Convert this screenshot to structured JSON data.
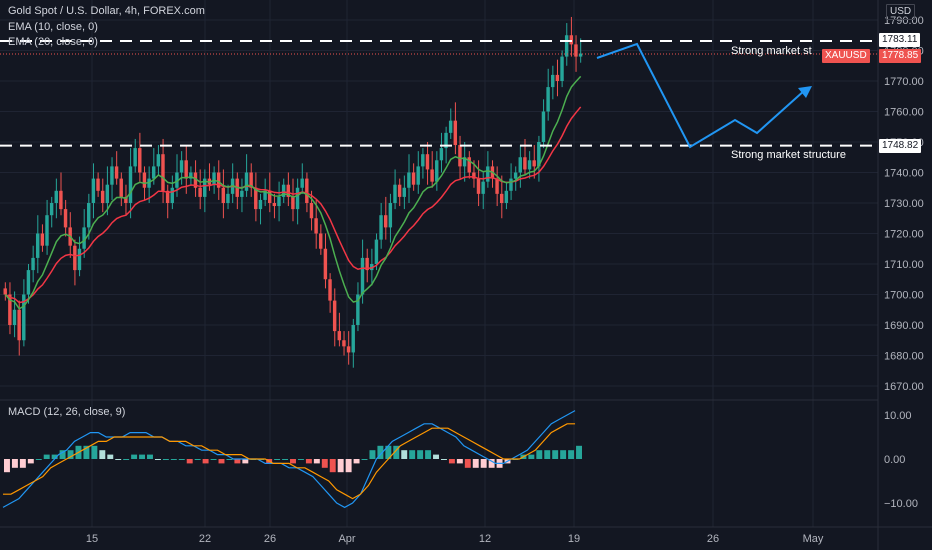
{
  "header": {
    "title": "Gold Spot / U.S. Dollar, 4h, FOREX.com",
    "ema1": "EMA (10, close, 0)",
    "ema2": "EMA (20, close, 0)",
    "currency": "USD"
  },
  "price_axis": {
    "ticks": [
      "1790.00",
      "1780.00",
      "1770.00",
      "1760.00",
      "1750.00",
      "1740.00",
      "1730.00",
      "1720.00",
      "1710.00",
      "1700.00",
      "1690.00",
      "1680.00",
      "1670.00"
    ]
  },
  "macd": {
    "label": "MACD (12, 26, close, 9)",
    "ticks": [
      "10.00",
      "0.00",
      "−10.00"
    ]
  },
  "time_axis": {
    "ticks": [
      "15",
      "22",
      "26",
      "Apr",
      "12",
      "19",
      "26",
      "May"
    ]
  },
  "levels": {
    "resistance": {
      "price": 1783.11,
      "label": "1783.11",
      "text": "Strong market st"
    },
    "support": {
      "price": 1748.82,
      "label": "1748.82",
      "text": "Strong market structure"
    },
    "current": {
      "symbol": "XAUUSD",
      "label": "1778.85",
      "price": 1778.85
    }
  },
  "colors": {
    "background": "#131722",
    "grid": "#1f2433",
    "up": "#26a69a",
    "down": "#ef5350",
    "ema_fast": "#4caf50",
    "ema_slow": "#f23645",
    "projection": "#2196f3",
    "macd_line": "#2196f3",
    "signal_line": "#ff9800"
  },
  "chart_data": {
    "type": "candlestick",
    "ylim": [
      1665,
      1793
    ],
    "candle_closes": [
      1700,
      1690,
      1695,
      1685,
      1700,
      1708,
      1712,
      1720,
      1716,
      1726,
      1730,
      1734,
      1728,
      1722,
      1716,
      1708,
      1715,
      1722,
      1730,
      1738,
      1734,
      1730,
      1736,
      1742,
      1738,
      1732,
      1730,
      1742,
      1748,
      1740,
      1735,
      1738,
      1742,
      1746,
      1734,
      1730,
      1735,
      1740,
      1744,
      1738,
      1740,
      1735,
      1732,
      1738,
      1736,
      1740,
      1735,
      1730,
      1733,
      1738,
      1732,
      1734,
      1740,
      1735,
      1728,
      1731,
      1734,
      1730,
      1729,
      1732,
      1736,
      1732,
      1728,
      1735,
      1738,
      1730,
      1725,
      1720,
      1715,
      1705,
      1698,
      1688,
      1685,
      1683,
      1681,
      1690,
      1700,
      1712,
      1708,
      1710,
      1718,
      1726,
      1722,
      1730,
      1736,
      1732,
      1735,
      1740,
      1736,
      1742,
      1746,
      1741,
      1737,
      1744,
      1748,
      1753,
      1757,
      1749,
      1742,
      1745,
      1740,
      1738,
      1733,
      1737,
      1742,
      1738,
      1733,
      1730,
      1734,
      1738,
      1740,
      1745,
      1741,
      1744,
      1742,
      1750,
      1760,
      1768,
      1772,
      1770,
      1778,
      1785,
      1782,
      1778,
      1779
    ],
    "macd": {
      "macd_line": [
        -11,
        -10,
        -9,
        -7,
        -5,
        -3,
        -1,
        1,
        2,
        4,
        5,
        6,
        6,
        5,
        5,
        5,
        6,
        6,
        6,
        5,
        5,
        4,
        4,
        3,
        3,
        2,
        2,
        1,
        1,
        0,
        0,
        0,
        0,
        -1,
        -1,
        -1,
        -2,
        -2,
        -3,
        -4,
        -6,
        -8,
        -10,
        -11,
        -10,
        -8,
        -4,
        0,
        2,
        4,
        5,
        6,
        7,
        8,
        8,
        7,
        6,
        5,
        3,
        2,
        1,
        0,
        -1,
        -1,
        0,
        1,
        2,
        4,
        6,
        8,
        9,
        10,
        11
      ],
      "signal_line": [
        -8,
        -8,
        -7,
        -6,
        -5,
        -4,
        -2,
        -1,
        0,
        1,
        2,
        3,
        4,
        4,
        5,
        5,
        5,
        5,
        5,
        5,
        5,
        4,
        4,
        4,
        3,
        3,
        2,
        2,
        1,
        1,
        1,
        0,
        0,
        0,
        -1,
        -1,
        -1,
        -2,
        -2,
        -3,
        -4,
        -5,
        -7,
        -8,
        -9,
        -8,
        -6,
        -3,
        -1,
        1,
        3,
        4,
        5,
        6,
        7,
        7,
        7,
        6,
        5,
        4,
        3,
        2,
        1,
        0,
        0,
        0,
        1,
        2,
        4,
        6,
        7,
        8,
        8
      ]
    }
  }
}
